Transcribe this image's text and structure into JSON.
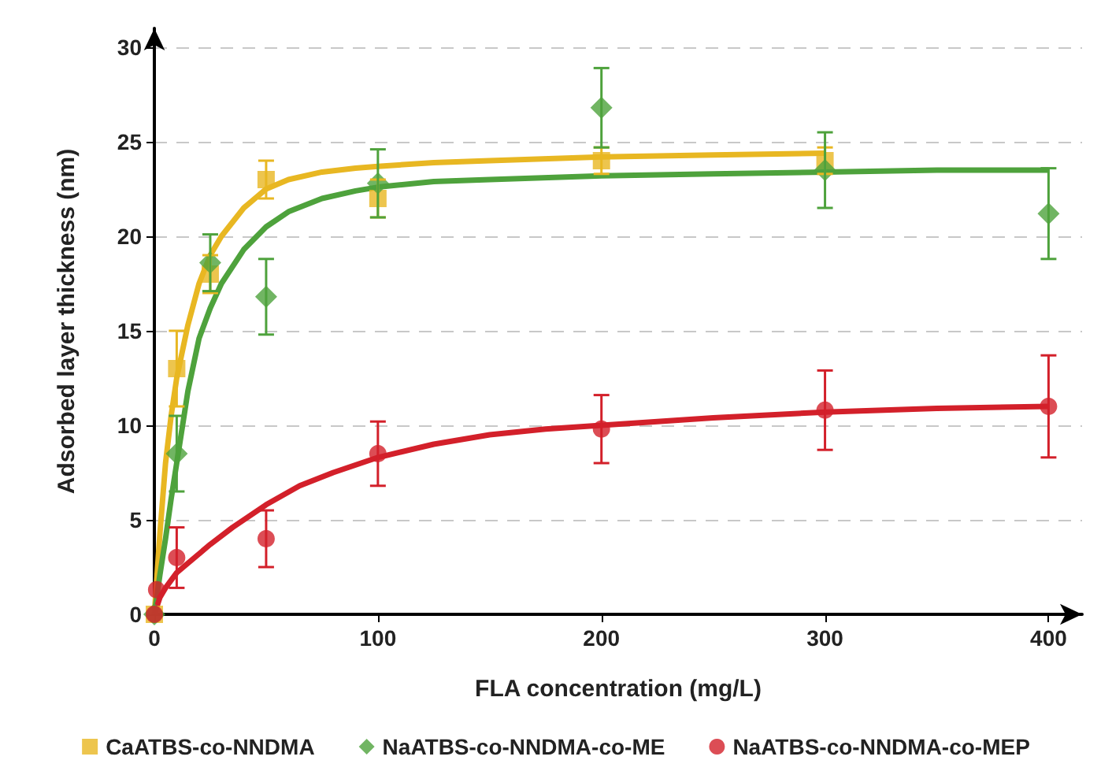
{
  "chart_data": {
    "type": "scatter",
    "xlabel": "FLA concentration (mg/L)",
    "ylabel": "Adsorbed layer thickness (nm)",
    "xlim": [
      0,
      415
    ],
    "xticks": [
      0,
      100,
      200,
      300,
      400
    ],
    "ylim": [
      0,
      31
    ],
    "yticks": [
      0,
      5,
      10,
      15,
      20,
      25,
      30
    ],
    "grid": "y",
    "legend": "bottom",
    "series": [
      {
        "name": "CaATBS-co-NNDMA",
        "color": "#e8b722",
        "marker": "square",
        "x": [
          0,
          10,
          25,
          50,
          100,
          200,
          300
        ],
        "values": [
          0,
          13.0,
          18.0,
          23.0,
          22.0,
          24.0,
          24.0
        ],
        "errors": [
          null,
          2.0,
          1.0,
          1.0,
          1.0,
          0.7,
          0.7
        ]
      },
      {
        "name": "NaATBS-co-NNDMA-co-ME",
        "color": "#4ea23c",
        "marker": "diamond",
        "x": [
          0,
          10,
          25,
          50,
          100,
          200,
          300,
          400
        ],
        "values": [
          0,
          8.5,
          18.6,
          16.8,
          22.8,
          26.8,
          23.5,
          21.2
        ],
        "errors": [
          null,
          2.0,
          1.5,
          2.0,
          1.8,
          2.1,
          2.0,
          2.4
        ]
      },
      {
        "name": "NaATBS-co-NNDMA-co-MEP",
        "color": "#d3202a",
        "marker": "circle",
        "x": [
          0,
          1,
          10,
          50,
          100,
          200,
          300,
          400
        ],
        "values": [
          0,
          1.3,
          3.0,
          4.0,
          8.5,
          9.8,
          10.8,
          11.0
        ],
        "errors": [
          null,
          null,
          1.6,
          1.5,
          1.7,
          1.8,
          2.1,
          2.7
        ]
      },
      {
        "type": "line",
        "color": "#e8b722",
        "marker": "none",
        "x": [
          0,
          2.5,
          5,
          7.5,
          10,
          15,
          20,
          25,
          30,
          40,
          50,
          60,
          75,
          90,
          100,
          125,
          150,
          200,
          250,
          300
        ],
        "values": [
          0,
          4.3,
          8,
          10.5,
          12.5,
          15.3,
          17.5,
          19,
          20,
          21.5,
          22.5,
          23,
          23.4,
          23.6,
          23.7,
          23.9,
          24,
          24.2,
          24.3,
          24.4
        ]
      },
      {
        "type": "line",
        "color": "#4ea23c",
        "marker": "none",
        "x": [
          0,
          2.5,
          5,
          7.5,
          10,
          15,
          20,
          25,
          30,
          40,
          50,
          60,
          75,
          90,
          100,
          125,
          150,
          200,
          250,
          300,
          350,
          400
        ],
        "values": [
          0,
          2.1,
          4,
          6.1,
          8,
          11.8,
          14.6,
          16.2,
          17.5,
          19.3,
          20.5,
          21.3,
          22,
          22.4,
          22.6,
          22.9,
          23,
          23.2,
          23.3,
          23.4,
          23.5,
          23.5
        ]
      },
      {
        "type": "line",
        "color": "#d3202a",
        "marker": "none",
        "x": [
          0,
          2.5,
          5,
          10,
          15,
          25,
          35,
          50,
          65,
          80,
          100,
          125,
          150,
          175,
          200,
          250,
          300,
          350,
          400
        ],
        "values": [
          0,
          0.9,
          1.4,
          2.2,
          2.7,
          3.7,
          4.6,
          5.8,
          6.8,
          7.5,
          8.3,
          9.0,
          9.5,
          9.8,
          10.0,
          10.4,
          10.7,
          10.9,
          11.0
        ]
      }
    ]
  }
}
